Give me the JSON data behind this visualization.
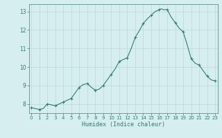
{
  "xlabel": "Humidex (Indice chaleur)",
  "x_values": [
    0,
    0.5,
    1,
    1.5,
    2,
    2.5,
    3,
    3.5,
    4,
    4.5,
    5,
    5.5,
    6,
    6.5,
    7,
    7.5,
    8,
    8.5,
    9,
    9.5,
    10,
    10.5,
    11,
    11.5,
    12,
    12.5,
    13,
    13.5,
    14,
    14.5,
    15,
    15.5,
    16,
    16.25,
    16.5,
    17,
    17.5,
    18,
    18.5,
    19,
    19.5,
    20,
    20.5,
    21,
    21.5,
    22,
    22.5,
    23
  ],
  "y_values": [
    7.8,
    7.75,
    7.7,
    7.75,
    8.0,
    7.95,
    7.9,
    8.0,
    8.1,
    8.2,
    8.3,
    8.6,
    8.9,
    9.05,
    9.1,
    8.9,
    8.75,
    8.8,
    9.0,
    9.3,
    9.6,
    9.9,
    10.3,
    10.4,
    10.5,
    11.0,
    11.6,
    11.95,
    12.35,
    12.6,
    12.8,
    13.0,
    13.1,
    13.15,
    13.1,
    13.1,
    12.7,
    12.4,
    12.1,
    11.9,
    11.2,
    10.45,
    10.2,
    10.1,
    9.8,
    9.5,
    9.3,
    9.25
  ],
  "marker_x": [
    0,
    1,
    2,
    3,
    4,
    5,
    6,
    7,
    8,
    9,
    10,
    11,
    12,
    13,
    14,
    15,
    16,
    17,
    18,
    19,
    20,
    21,
    22,
    23
  ],
  "marker_y": [
    7.8,
    7.7,
    8.0,
    7.9,
    8.1,
    8.3,
    8.9,
    9.1,
    8.75,
    9.0,
    9.6,
    10.3,
    10.5,
    11.6,
    12.35,
    12.8,
    13.1,
    13.1,
    12.4,
    11.9,
    10.45,
    10.1,
    9.5,
    9.25
  ],
  "ylim": [
    7.5,
    13.4
  ],
  "xlim": [
    -0.3,
    23.3
  ],
  "yticks": [
    8,
    9,
    10,
    11,
    12,
    13
  ],
  "xticks": [
    0,
    1,
    2,
    3,
    4,
    5,
    6,
    7,
    8,
    9,
    10,
    11,
    12,
    13,
    14,
    15,
    16,
    17,
    18,
    19,
    20,
    21,
    22,
    23
  ],
  "line_color": "#2e7d6e",
  "marker_color": "#2e7d6e",
  "bg_color": "#d6eef0",
  "grid_color": "#bcd8da",
  "spine_color": "#5a9090",
  "tick_label_color": "#2e7d6e",
  "xlabel_color": "#2e7d6e"
}
